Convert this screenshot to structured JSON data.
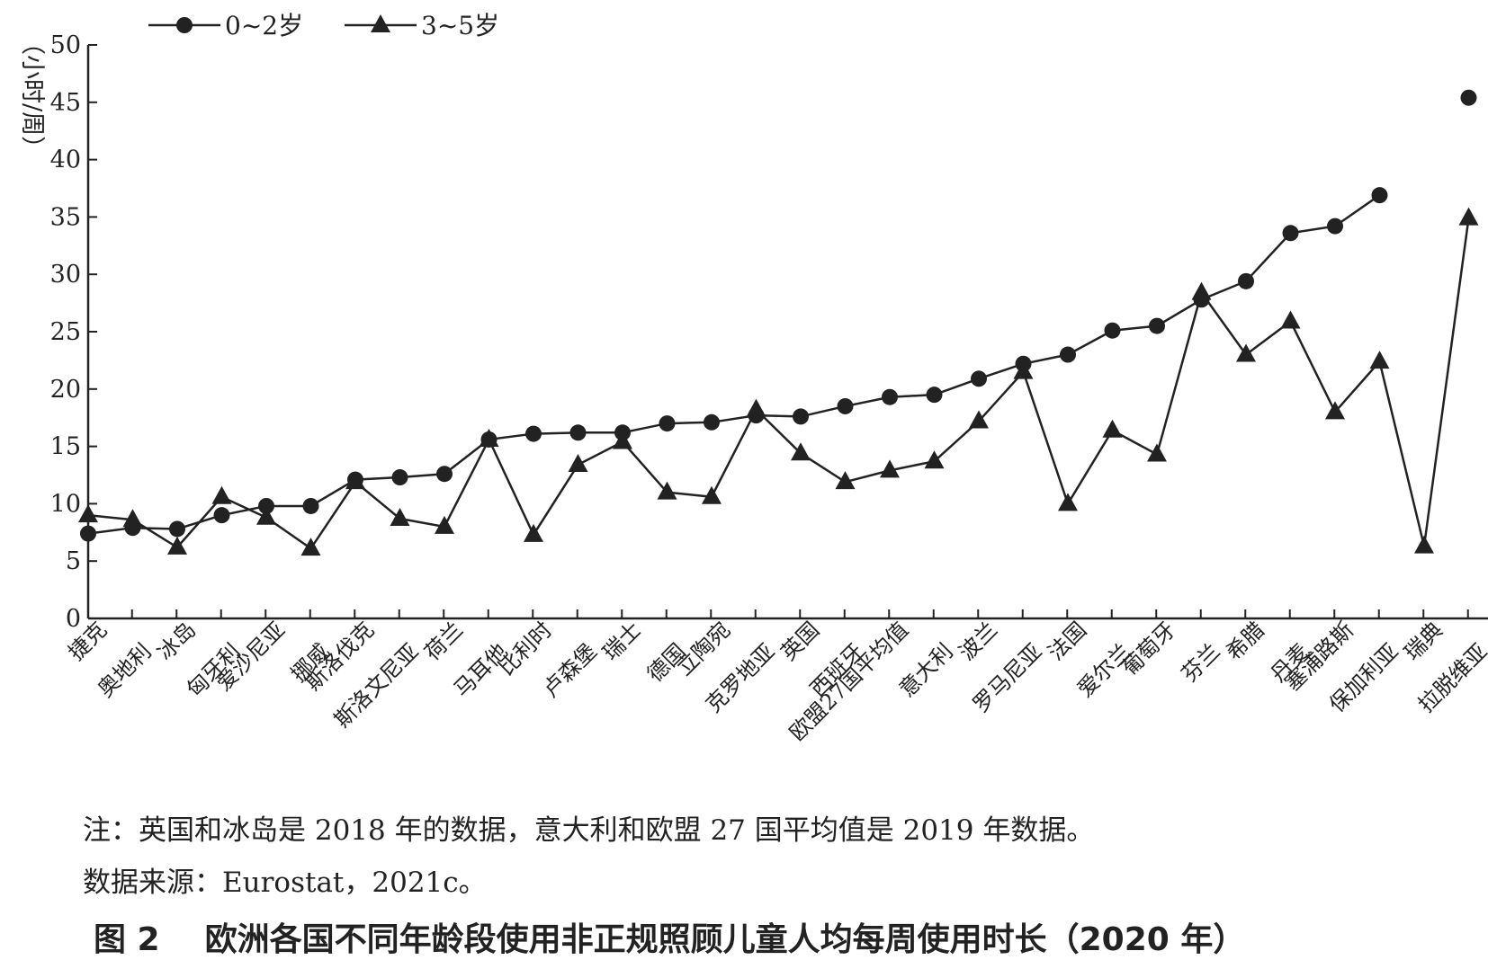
{
  "chart_data": {
    "type": "line",
    "ylabel": "（小时/周）",
    "ylim": [
      0,
      50
    ],
    "yticks": [
      "0",
      "5",
      "10",
      "15",
      "20",
      "25",
      "30",
      "35",
      "40",
      "45",
      "50"
    ],
    "legend_position": "top-left",
    "categories": [
      "捷克",
      "奥地利",
      "冰岛",
      "匈牙利",
      "爱沙尼亚",
      "挪威",
      "斯洛伐克",
      "斯洛文尼亚",
      "荷兰",
      "马耳他",
      "比利时",
      "卢森堡",
      "瑞士",
      "德国",
      "立陶宛",
      "克罗地亚",
      "英国",
      "西班牙",
      "欧盟27国平均值",
      "意大利",
      "波兰",
      "罗马尼亚",
      "法国",
      "爱尔兰",
      "葡萄牙",
      "芬兰",
      "希腊",
      "丹麦",
      "塞浦路斯",
      "保加利亚",
      "瑞典",
      "拉脱维亚"
    ],
    "series": [
      {
        "name": "0~2岁",
        "marker": "circle",
        "values": [
          7.4,
          7.9,
          7.8,
          9.0,
          9.8,
          9.8,
          12.1,
          12.3,
          12.6,
          15.6,
          16.1,
          16.2,
          16.2,
          17.0,
          17.1,
          17.7,
          17.6,
          18.5,
          19.3,
          19.5,
          20.9,
          22.2,
          23.0,
          25.1,
          25.5,
          27.8,
          29.4,
          33.6,
          34.2,
          36.9,
          null,
          45.4
        ]
      },
      {
        "name": "3~5岁",
        "marker": "triangle",
        "values": [
          9.0,
          8.6,
          6.2,
          10.6,
          8.8,
          6.1,
          11.9,
          8.7,
          8.0,
          15.6,
          7.3,
          13.4,
          15.4,
          11.0,
          10.6,
          18.2,
          14.4,
          11.9,
          12.9,
          13.7,
          17.2,
          21.5,
          10.0,
          16.4,
          14.3,
          28.4,
          23.0,
          25.9,
          18.0,
          22.4,
          6.3,
          34.9
        ]
      }
    ],
    "line_color": "#222222",
    "background_color": "#ffffff"
  },
  "notes": {
    "note": "注：英国和冰岛是 2018 年的数据，意大利和欧盟 27 国平均值是 2019 年数据。",
    "source": "数据来源：Eurostat，2021c。"
  },
  "figure": {
    "number": "图 2",
    "title": "欧洲各国不同年龄段使用非正规照顾儿童人均每周使用时长（2020 年）"
  }
}
